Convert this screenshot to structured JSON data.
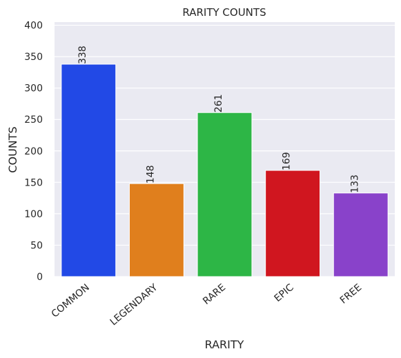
{
  "chart_data": {
    "type": "bar",
    "title": "RARITY COUNTS",
    "xlabel": "RARITY",
    "ylabel": "COUNTS",
    "categories": [
      "COMMON",
      "LEGENDARY",
      "RARE",
      "EPIC",
      "FREE"
    ],
    "values": [
      338,
      148,
      261,
      169,
      133
    ],
    "colors": [
      "#2249e6",
      "#e07f1d",
      "#2db646",
      "#d0161f",
      "#8942ca"
    ],
    "ylim": [
      0,
      405
    ],
    "yticks": [
      0,
      50,
      100,
      150,
      200,
      250,
      300,
      350,
      400
    ],
    "grid": true,
    "background": "#eaeaf2"
  }
}
